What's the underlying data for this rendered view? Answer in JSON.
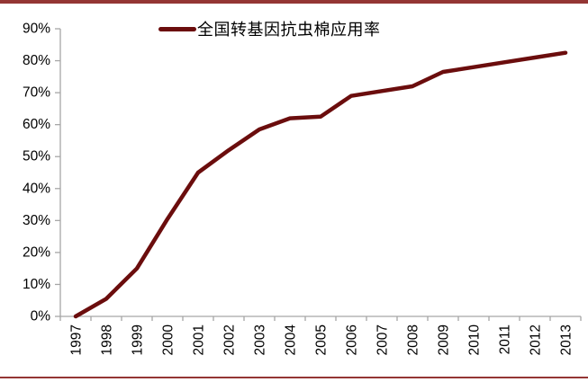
{
  "page": {
    "top_border_color": "#943634",
    "bottom_border_color": "#943634",
    "background_color": "#ffffff"
  },
  "legend": {
    "label": "全国转基因抗虫棉应用率",
    "marker_color": "#6b0d0d"
  },
  "chart_data": {
    "type": "line",
    "title": "",
    "xlabel": "",
    "ylabel": "",
    "categories": [
      "1997",
      "1998",
      "1999",
      "2000",
      "2001",
      "2002",
      "2003",
      "2004",
      "2005",
      "2006",
      "2007",
      "2008",
      "2009",
      "2010",
      "2011",
      "2012",
      "2013"
    ],
    "series": [
      {
        "name": "全国转基因抗虫棉应用率",
        "color": "#6b0d0d",
        "values": [
          0,
          5.5,
          15,
          30.5,
          45,
          52,
          58.5,
          62,
          62.5,
          69,
          70.5,
          72,
          76.5,
          78,
          79.5,
          81,
          82.5
        ]
      }
    ],
    "ylim": [
      0,
      90
    ],
    "ytick_step": 10,
    "ytick_labels": [
      "0%",
      "10%",
      "20%",
      "30%",
      "40%",
      "50%",
      "60%",
      "70%",
      "80%",
      "90%"
    ],
    "grid": false,
    "legend_position": "top-center",
    "axis_color": "#a6a6a6",
    "tick_label_color": "#000000",
    "x_labels_rotated_degrees": 90
  }
}
